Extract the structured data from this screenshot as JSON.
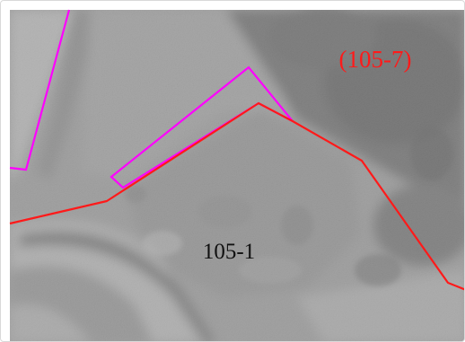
{
  "map": {
    "view": "aerial-photo-grayscale",
    "colors": {
      "parcel_boundary": "#ff1a1a",
      "highlight_parcel": "#ff00ff",
      "label_primary": "#111111",
      "label_secondary": "#ff1a1a"
    },
    "labels": {
      "parcel_main": "105-1",
      "parcel_adjacent": "(105-7)"
    }
  }
}
